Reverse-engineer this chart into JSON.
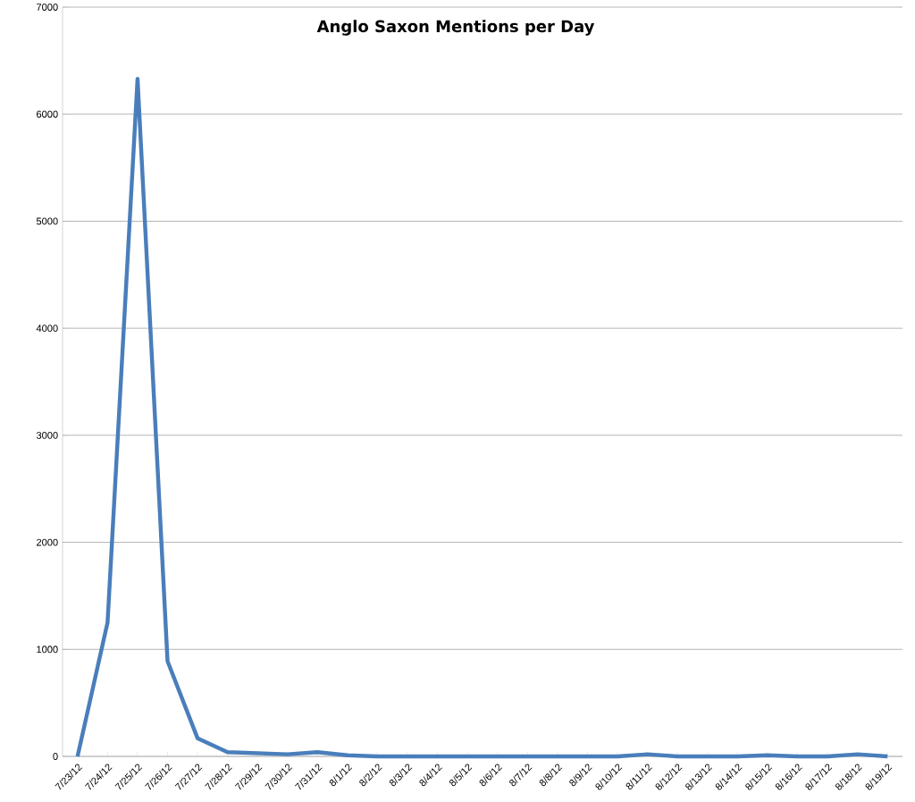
{
  "chart_data": {
    "type": "line",
    "title": "Anglo Saxon  Mentions per Day",
    "categories": [
      "7/23/12",
      "7/24/12",
      "7/25/12",
      "7/26/12",
      "7/27/12",
      "7/28/12",
      "7/29/12",
      "7/30/12",
      "7/31/12",
      "8/1/12",
      "8/2/12",
      "8/3/12",
      "8/4/12",
      "8/5/12",
      "8/6/12",
      "8/7/12",
      "8/8/12",
      "8/9/12",
      "8/10/12",
      "8/11/12",
      "8/12/12",
      "8/13/12",
      "8/14/12",
      "8/15/12",
      "8/16/12",
      "8/17/12",
      "8/18/12",
      "8/19/12"
    ],
    "series": [
      {
        "color": "#4a7ebb",
        "values": [
          0,
          1250,
          6330,
          890,
          170,
          40,
          30,
          20,
          40,
          10,
          0,
          0,
          0,
          0,
          0,
          0,
          0,
          0,
          0,
          20,
          0,
          0,
          0,
          10,
          0,
          0,
          20,
          0
        ]
      }
    ],
    "ylim": [
      0,
      7000
    ],
    "yticks": [
      0,
      1000,
      2000,
      3000,
      4000,
      5000,
      6000,
      7000
    ],
    "grid": "y",
    "marker": "none",
    "line_style": "solid"
  }
}
